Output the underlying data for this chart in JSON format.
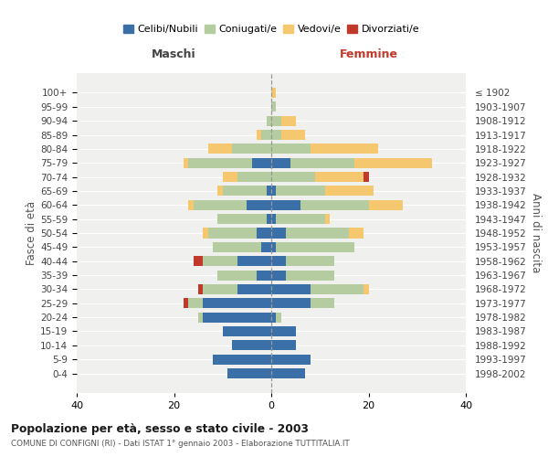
{
  "age_groups": [
    "100+",
    "95-99",
    "90-94",
    "85-89",
    "80-84",
    "75-79",
    "70-74",
    "65-69",
    "60-64",
    "55-59",
    "50-54",
    "45-49",
    "40-44",
    "35-39",
    "30-34",
    "25-29",
    "20-24",
    "15-19",
    "10-14",
    "5-9",
    "0-4"
  ],
  "birth_years": [
    "≤ 1902",
    "1903-1907",
    "1908-1912",
    "1913-1917",
    "1918-1922",
    "1923-1927",
    "1928-1932",
    "1933-1937",
    "1938-1942",
    "1943-1947",
    "1948-1952",
    "1953-1957",
    "1958-1962",
    "1963-1967",
    "1968-1972",
    "1973-1977",
    "1978-1982",
    "1983-1987",
    "1988-1992",
    "1993-1997",
    "1998-2002"
  ],
  "maschi": {
    "celibi": [
      0,
      0,
      0,
      0,
      0,
      4,
      0,
      1,
      5,
      1,
      3,
      2,
      7,
      3,
      7,
      14,
      14,
      10,
      8,
      12,
      9
    ],
    "coniugati": [
      0,
      0,
      1,
      2,
      8,
      13,
      7,
      9,
      11,
      10,
      10,
      10,
      7,
      8,
      7,
      3,
      1,
      0,
      0,
      0,
      0
    ],
    "vedovi": [
      0,
      0,
      0,
      1,
      5,
      1,
      3,
      1,
      1,
      0,
      1,
      0,
      0,
      0,
      0,
      0,
      0,
      0,
      0,
      0,
      0
    ],
    "divorziati": [
      0,
      0,
      0,
      0,
      0,
      0,
      0,
      0,
      0,
      0,
      0,
      0,
      2,
      0,
      1,
      1,
      0,
      0,
      0,
      0,
      0
    ]
  },
  "femmine": {
    "nubili": [
      0,
      0,
      0,
      0,
      0,
      4,
      0,
      1,
      6,
      1,
      3,
      1,
      3,
      3,
      8,
      8,
      1,
      5,
      5,
      8,
      7
    ],
    "coniugate": [
      0,
      1,
      2,
      2,
      8,
      13,
      9,
      10,
      14,
      10,
      13,
      16,
      10,
      10,
      11,
      5,
      1,
      0,
      0,
      0,
      0
    ],
    "vedove": [
      1,
      0,
      3,
      5,
      14,
      16,
      10,
      10,
      7,
      1,
      3,
      0,
      0,
      0,
      1,
      0,
      0,
      0,
      0,
      0,
      0
    ],
    "divorziate": [
      0,
      0,
      0,
      0,
      0,
      0,
      1,
      0,
      0,
      0,
      0,
      0,
      0,
      0,
      0,
      0,
      0,
      0,
      0,
      0,
      0
    ]
  },
  "colors": {
    "celibi_nubili": "#3a6fa8",
    "coniugati": "#b5cca0",
    "vedovi": "#f5c76e",
    "divorziati": "#c0392b"
  },
  "xlim": 40,
  "title": "Popolazione per età, sesso e stato civile - 2003",
  "subtitle": "COMUNE DI CONFIGNI (RI) - Dati ISTAT 1° gennaio 2003 - Elaborazione TUTTITALIA.IT",
  "ylabel_left": "Fasce di età",
  "ylabel_right": "Anni di nascita",
  "xlabel_maschi": "Maschi",
  "xlabel_femmine": "Femmine",
  "maschi_color": "#444444",
  "femmine_color": "#c0392b",
  "bg_color": "#ffffff",
  "plot_bg": "#f0f0ee"
}
